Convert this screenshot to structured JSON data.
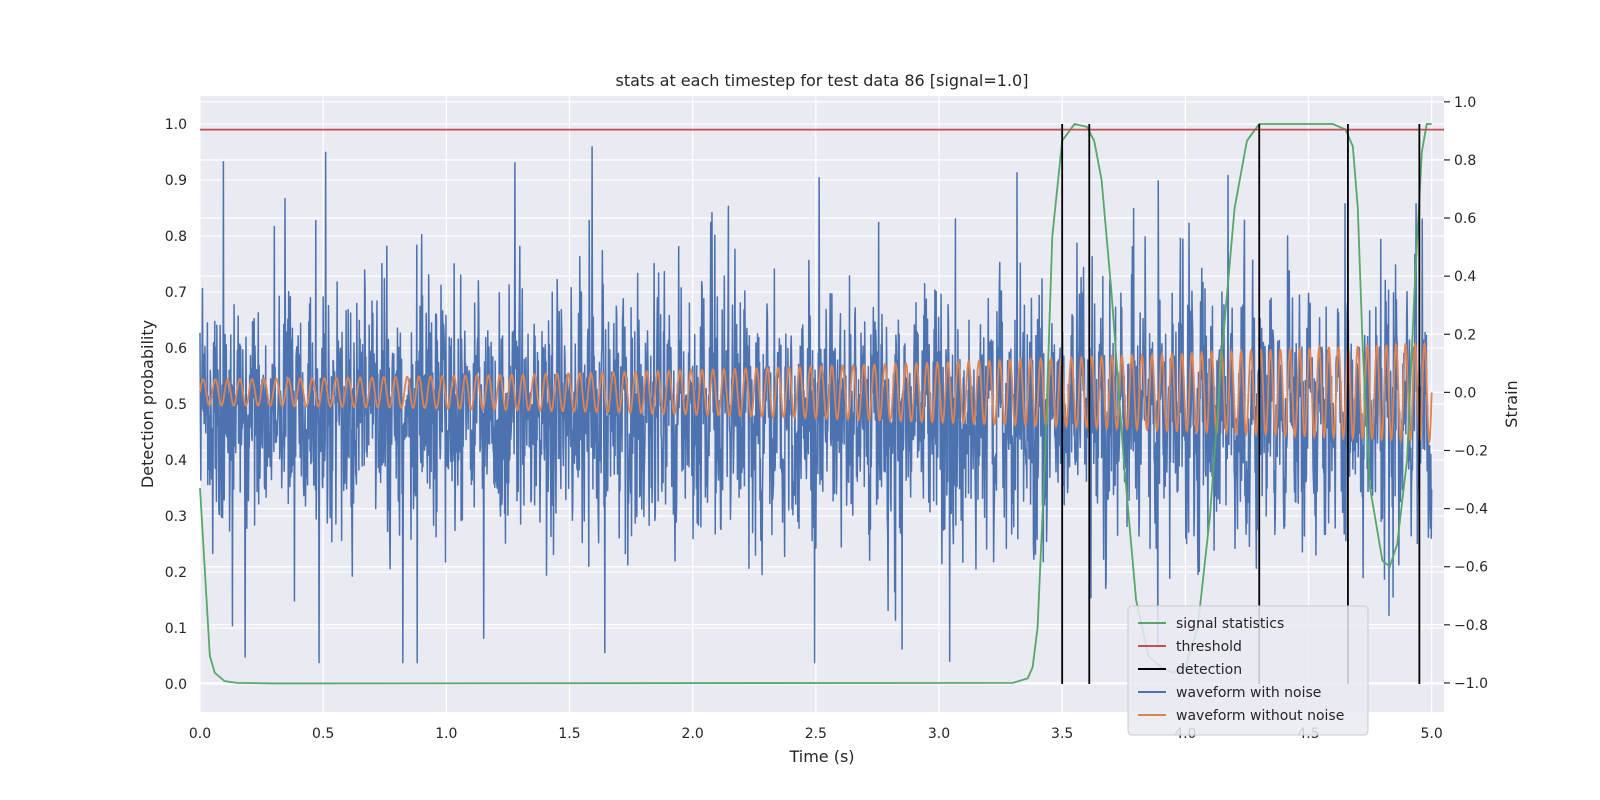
{
  "chart_data": {
    "type": "line",
    "title": "stats at each timestep for test data 86 [signal=1.0]",
    "xlabel": "Time (s)",
    "ylabel": "Detection probability",
    "y2label": "Strain",
    "xlim": [
      0.0,
      5.05
    ],
    "ylim": [
      -0.05,
      1.05
    ],
    "y2lim": [
      -1.1,
      1.02
    ],
    "xticks": [
      "0.0",
      "0.5",
      "1.0",
      "1.5",
      "2.0",
      "2.5",
      "3.0",
      "3.5",
      "4.0",
      "4.5",
      "5.0"
    ],
    "xtick_values": [
      0.0,
      0.5,
      1.0,
      1.5,
      2.0,
      2.5,
      3.0,
      3.5,
      4.0,
      4.5,
      5.0
    ],
    "yticks": [
      "0.0",
      "0.1",
      "0.2",
      "0.3",
      "0.4",
      "0.5",
      "0.6",
      "0.7",
      "0.8",
      "0.9",
      "1.0"
    ],
    "ytick_values": [
      0.0,
      0.1,
      0.2,
      0.3,
      0.4,
      0.5,
      0.6,
      0.7,
      0.8,
      0.9,
      1.0
    ],
    "y2ticks": [
      "−1.0",
      "−0.8",
      "−0.6",
      "−0.4",
      "−0.2",
      "0.0",
      "0.2",
      "0.4",
      "0.6",
      "0.8",
      "1.0"
    ],
    "y2tick_values": [
      -1.0,
      -0.8,
      -0.6,
      -0.4,
      -0.2,
      0.0,
      0.2,
      0.4,
      0.6,
      0.8,
      1.0
    ],
    "grid": true,
    "legend_position": "lower-right",
    "colors": {
      "background": "#eaeaf2",
      "signal_statistics": "#55a868",
      "threshold": "#c44e52",
      "detection": "#000000",
      "waveform_with_noise": "#4c72b0",
      "waveform_without_noise": "#dd8452"
    },
    "legend": [
      {
        "key": "signal_statistics",
        "label": "signal statistics"
      },
      {
        "key": "threshold",
        "label": "threshold"
      },
      {
        "key": "detection",
        "label": "detection"
      },
      {
        "key": "waveform_with_noise",
        "label": "waveform with noise"
      },
      {
        "key": "waveform_without_noise",
        "label": "waveform without noise"
      }
    ],
    "threshold": 0.99,
    "detections": [
      3.5,
      3.61,
      4.3,
      4.66,
      4.95
    ],
    "signal_statistics": {
      "x": [
        0.0,
        0.02,
        0.04,
        0.06,
        0.1,
        0.15,
        0.3,
        3.3,
        3.36,
        3.38,
        3.4,
        3.43,
        3.46,
        3.5,
        3.55,
        3.6,
        3.63,
        3.66,
        3.7,
        3.75,
        3.8,
        3.85,
        3.9,
        3.95,
        4.0,
        4.05,
        4.1,
        4.15,
        4.2,
        4.25,
        4.3,
        4.35,
        4.4,
        4.5,
        4.6,
        4.65,
        4.68,
        4.7,
        4.72,
        4.75,
        4.8,
        4.83,
        4.86,
        4.9,
        4.93,
        4.96,
        4.98,
        5.0
      ],
      "y": [
        0.35,
        0.2,
        0.05,
        0.02,
        0.005,
        0.002,
        0.001,
        0.002,
        0.01,
        0.03,
        0.1,
        0.4,
        0.8,
        0.97,
        1.0,
        0.995,
        0.97,
        0.9,
        0.7,
        0.4,
        0.15,
        0.05,
        0.03,
        0.02,
        0.03,
        0.1,
        0.3,
        0.6,
        0.85,
        0.97,
        1.0,
        1.0,
        1.0,
        1.0,
        1.0,
        0.99,
        0.96,
        0.85,
        0.6,
        0.35,
        0.22,
        0.21,
        0.25,
        0.4,
        0.7,
        0.95,
        1.0,
        1.0
      ]
    },
    "waveform_without_noise": {
      "duration": 5.0,
      "frequency_start": 20.0,
      "frequency_end": 26.0,
      "amplitude_start": 0.045,
      "amplitude_end": 0.17,
      "offset": 0.0
    },
    "waveform_with_noise": {
      "noise_sigma": 0.2,
      "spike_amplitude": 0.93
    }
  }
}
